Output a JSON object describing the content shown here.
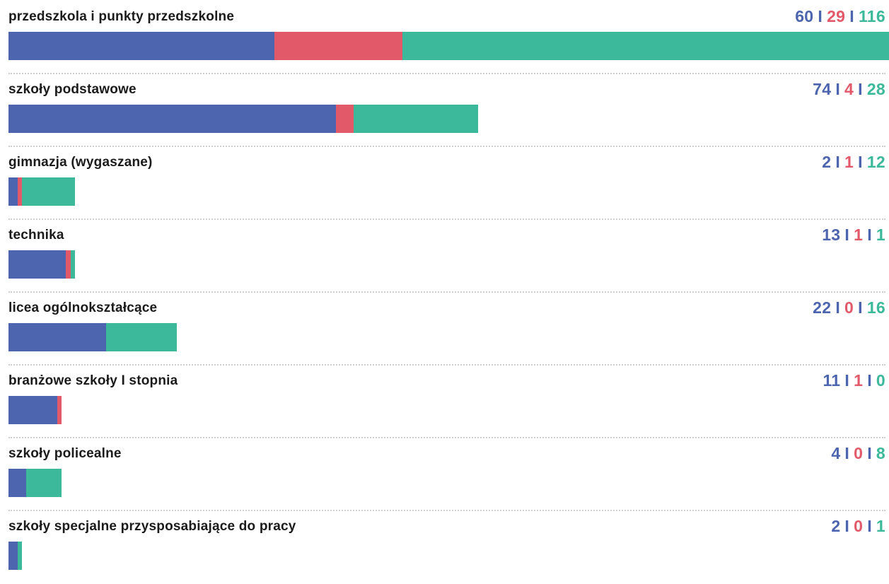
{
  "chart_data": {
    "type": "bar",
    "orientation": "horizontal",
    "stacked": true,
    "title": "",
    "xlabel": "",
    "ylabel": "",
    "separator": "I",
    "colors": [
      "#4d64ae",
      "#e25a6a",
      "#3bb99a"
    ],
    "categories": [
      "przedszkola i punkty przedszkolne",
      "szkoły podstawowe",
      "gimnazja (wygaszane)",
      "technika",
      "licea ogólnokształcące",
      "branżowe szkoły I stopnia",
      "szkoły policealne",
      "szkoły specjalne przysposabiające do pracy"
    ],
    "series": [
      {
        "values": [
          60,
          74,
          2,
          13,
          22,
          11,
          4,
          2
        ]
      },
      {
        "values": [
          29,
          4,
          1,
          1,
          0,
          1,
          0,
          0
        ]
      },
      {
        "values": [
          116,
          28,
          12,
          1,
          16,
          0,
          8,
          1
        ]
      }
    ],
    "xlim": [
      0,
      198
    ],
    "grid": false,
    "legend": "none"
  }
}
